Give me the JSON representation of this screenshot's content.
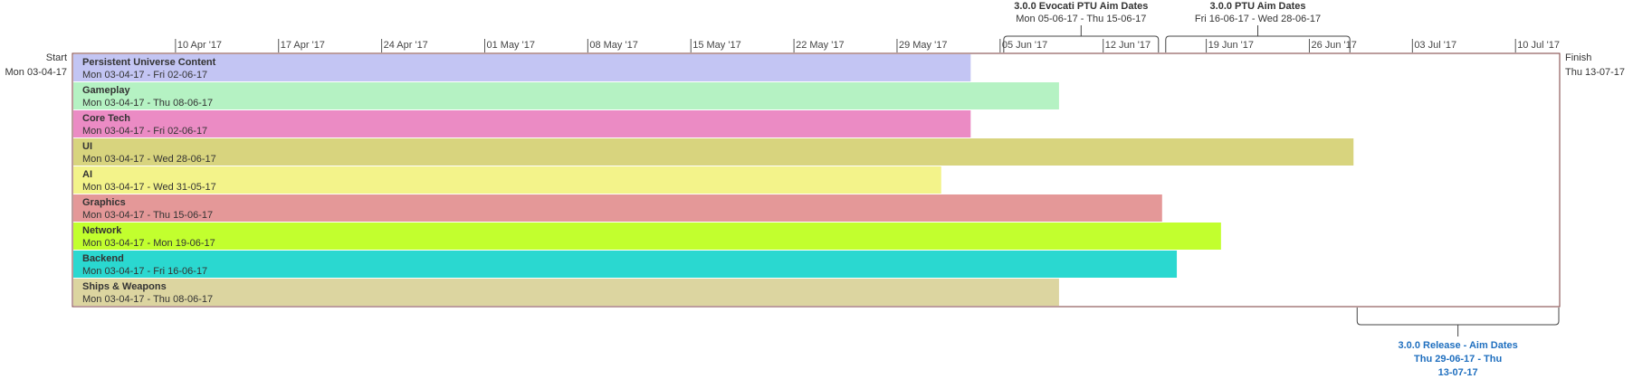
{
  "chart_data": {
    "type": "gantt",
    "start_label": "Start",
    "start_date_label": "Mon 03-04-17",
    "finish_label": "Finish",
    "finish_date_label": "Thu 13-07-17",
    "axis_start": "2017-04-03",
    "axis_end": "2017-07-13",
    "ticks": [
      {
        "date": "2017-04-10",
        "label": "10 Apr '17"
      },
      {
        "date": "2017-04-17",
        "label": "17 Apr '17"
      },
      {
        "date": "2017-04-24",
        "label": "24 Apr '17"
      },
      {
        "date": "2017-05-01",
        "label": "01 May '17"
      },
      {
        "date": "2017-05-08",
        "label": "08 May '17"
      },
      {
        "date": "2017-05-15",
        "label": "15 May '17"
      },
      {
        "date": "2017-05-22",
        "label": "22 May '17"
      },
      {
        "date": "2017-05-29",
        "label": "29 May '17"
      },
      {
        "date": "2017-06-05",
        "label": "05 Jun '17"
      },
      {
        "date": "2017-06-12",
        "label": "12 Jun '17"
      },
      {
        "date": "2017-06-19",
        "label": "19 Jun '17"
      },
      {
        "date": "2017-06-26",
        "label": "26 Jun '17"
      },
      {
        "date": "2017-07-03",
        "label": "03 Jul '17"
      },
      {
        "date": "2017-07-10",
        "label": "10 Jul '17"
      }
    ],
    "tasks": [
      {
        "name": "Persistent Universe Content",
        "dates": "Mon 03-04-17 - Fri 02-06-17",
        "start": "2017-04-03",
        "end": "2017-06-03",
        "color": "#c3c5f3"
      },
      {
        "name": "Gameplay",
        "dates": "Mon 03-04-17 - Thu 08-06-17",
        "start": "2017-04-03",
        "end": "2017-06-09",
        "color": "#b5f2c3"
      },
      {
        "name": "Core Tech",
        "dates": "Mon 03-04-17 - Fri 02-06-17",
        "start": "2017-04-03",
        "end": "2017-06-03",
        "color": "#eb8bc4"
      },
      {
        "name": "UI",
        "dates": "Mon 03-04-17 - Wed 28-06-17",
        "start": "2017-04-03",
        "end": "2017-06-29",
        "color": "#d8d47e"
      },
      {
        "name": "AI",
        "dates": "Mon 03-04-17 - Wed 31-05-17",
        "start": "2017-04-03",
        "end": "2017-06-01",
        "color": "#f3f38a"
      },
      {
        "name": "Graphics",
        "dates": "Mon 03-04-17 - Thu 15-06-17",
        "start": "2017-04-03",
        "end": "2017-06-16",
        "color": "#e49898"
      },
      {
        "name": "Network",
        "dates": "Mon 03-04-17 - Mon 19-06-17",
        "start": "2017-04-03",
        "end": "2017-06-20",
        "color": "#c2ff2e"
      },
      {
        "name": "Backend",
        "dates": "Mon 03-04-17 - Fri 16-06-17",
        "start": "2017-04-03",
        "end": "2017-06-17",
        "color": "#2ad8d0"
      },
      {
        "name": "Ships & Weapons",
        "dates": "Mon 03-04-17 - Thu 08-06-17",
        "start": "2017-04-03",
        "end": "2017-06-09",
        "color": "#dcd5a0"
      }
    ],
    "annotations_top": [
      {
        "title": "3.0.0 Evocati PTU Aim Dates",
        "dates": "Mon 05-06-17 - Thu 15-06-17",
        "start": "2017-06-05",
        "end": "2017-06-16"
      },
      {
        "title": "3.0.0 PTU Aim Dates",
        "dates": "Fri 16-06-17 - Wed 28-06-17",
        "start": "2017-06-16",
        "end": "2017-06-29"
      }
    ],
    "annotation_bottom": {
      "lines": [
        "3.0.0 Release - Aim Dates",
        "Thu 29-06-17 - Thu",
        "13-07-17"
      ],
      "start": "2017-06-29",
      "end": "2017-07-13",
      "color": "#1f6fbf"
    },
    "border_color": "#7a3b3b"
  }
}
